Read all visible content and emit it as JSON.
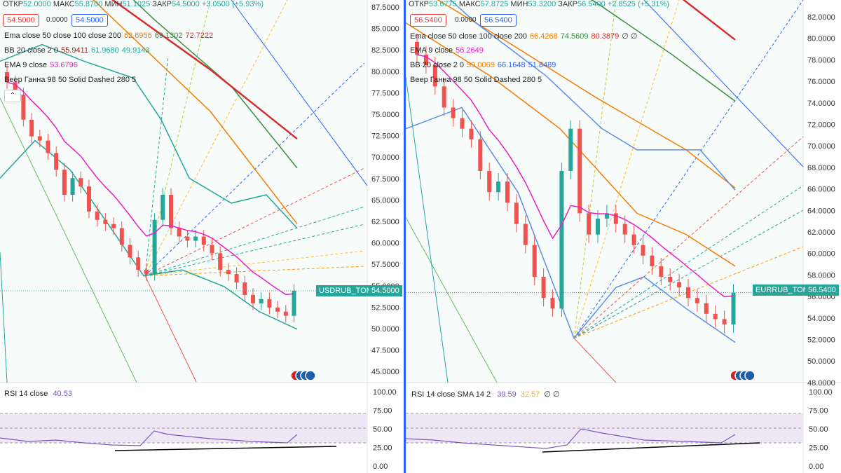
{
  "left": {
    "ohlc": {
      "o_label": "ОТКР",
      "o": "52.0000",
      "h_label": "МАКС",
      "h": "55.8700",
      "l_label": "МИН",
      "l": "51.1025",
      "c_label": "ЗАКР",
      "c": "54.5000",
      "chg": "+3.0500 (+5.93%)"
    },
    "bid": "54.5000",
    "spread": "0.0000",
    "ask": "54.5000",
    "legends": [
      {
        "label": "Ema close 50 close 100 close 200",
        "values": [
          {
            "v": "62.6956",
            "color": "#f57c00"
          },
          {
            "v": "69.1302",
            "color": "#388e3c"
          },
          {
            "v": "72.7222",
            "color": "#d32f2f"
          }
        ]
      },
      {
        "label": "BB 20 close 2 0",
        "values": [
          {
            "v": "55.9411",
            "color": "#8d2a1a"
          },
          {
            "v": "61.9680",
            "color": "#26a69a"
          },
          {
            "v": "49.9143",
            "color": "#26a69a"
          }
        ]
      },
      {
        "label": "EMA 9 close",
        "values": [
          {
            "v": "53.6796",
            "color": "#e91ec5"
          }
        ]
      },
      {
        "label": "Веер Ганна 98 50 Solid Dashed 280 5",
        "values": []
      }
    ],
    "axis": [
      "87.5000",
      "85.0000",
      "82.5000",
      "80.0000",
      "77.5000",
      "75.0000",
      "72.5000",
      "70.0000",
      "67.5000",
      "65.0000",
      "62.5000",
      "60.0000",
      "57.5000",
      "55.0000",
      "52.5000",
      "50.0000",
      "47.5000",
      "45.0000"
    ],
    "symbol": "USDRUB_TOM",
    "last": "54.5000",
    "rsi_label": "RSI 14 close",
    "rsi_value": "40.53",
    "rsi_axis": [
      "100.00",
      "75.00",
      "50.00",
      "25.00",
      "0.00"
    ]
  },
  "right": {
    "ohlc": {
      "o_label": "ОТКР",
      "o": "53.6775",
      "h_label": "МАКС",
      "h": "57.8725",
      "l_label": "МИН",
      "l": "53.3200",
      "c_label": "ЗАКР",
      "c": "56.5400",
      "chg": "+2.8525 (+5.31%)"
    },
    "bid": "56.5400",
    "spread": "0.0000",
    "ask": "56.5400",
    "legends": [
      {
        "label": "Ema close 50 close 100 close 200",
        "values": [
          {
            "v": "66.4268",
            "color": "#f57c00"
          },
          {
            "v": "74.5609",
            "color": "#388e3c"
          },
          {
            "v": "80.3879",
            "color": "#d32f2f"
          },
          {
            "v": "∅ ∅",
            "color": "#333"
          }
        ]
      },
      {
        "label": "EMA 9 close",
        "values": [
          {
            "v": "56.2649",
            "color": "#e91ec5"
          }
        ]
      },
      {
        "label": "BB 20 close 2 0",
        "values": [
          {
            "v": "59.0069",
            "color": "#f57c00"
          },
          {
            "v": "66.1648",
            "color": "#2962ff"
          },
          {
            "v": "51.8489",
            "color": "#2962ff"
          }
        ]
      },
      {
        "label": "Веер Ганна 98 50 Solid Dashed 280 5",
        "values": []
      }
    ],
    "axis": [
      "82.0000",
      "80.0000",
      "78.0000",
      "76.0000",
      "74.0000",
      "72.0000",
      "70.0000",
      "68.0000",
      "66.0000",
      "64.0000",
      "62.0000",
      "60.0000",
      "58.0000",
      "56.0000",
      "54.0000",
      "52.0000",
      "50.0000",
      "48.0000"
    ],
    "symbol": "EURRUB_TOM",
    "last": "56.5400",
    "rsi_label": "RSI 14 close SMA 14 2",
    "rsi_values": [
      {
        "v": "39.59",
        "color": "#7e57c2"
      },
      {
        "v": "32.57",
        "color": "#f9a825"
      },
      {
        "v": "∅ ∅",
        "color": "#333"
      }
    ],
    "rsi_axis": [
      "100.00",
      "75.00",
      "50.00",
      "25.00",
      "0.00"
    ]
  },
  "colors": {
    "up": "#26a69a",
    "down": "#ef5350",
    "ema9": "#e91ec5",
    "rsi": "#7e57c2"
  },
  "chart_data": [
    {
      "type": "candlestick",
      "symbol": "USDRUB_TOM",
      "ylim": [
        43.5,
        88.5
      ],
      "closes": [
        79.5,
        78,
        75,
        73,
        72.5,
        71,
        69,
        66,
        68,
        67,
        64,
        63,
        62.5,
        62,
        60,
        58.5,
        57,
        56.5,
        63,
        66,
        62,
        61,
        60.5,
        61,
        60,
        59,
        57,
        56.5,
        55.5,
        54,
        53,
        53.5,
        52.5,
        52,
        51.5,
        54.5
      ]
    },
    {
      "type": "candlestick",
      "symbol": "EURRUB_TOM",
      "ylim": [
        48,
        83.5
      ],
      "closes": [
        79,
        78,
        76,
        74,
        73,
        72,
        71,
        68,
        66,
        67,
        65,
        63,
        61,
        58,
        56,
        55,
        68,
        72,
        64,
        62,
        63.5,
        64,
        63,
        62,
        61,
        60,
        59,
        58,
        57.5,
        57,
        56,
        55.5,
        54.5,
        54,
        53.5,
        56.5
      ]
    }
  ]
}
